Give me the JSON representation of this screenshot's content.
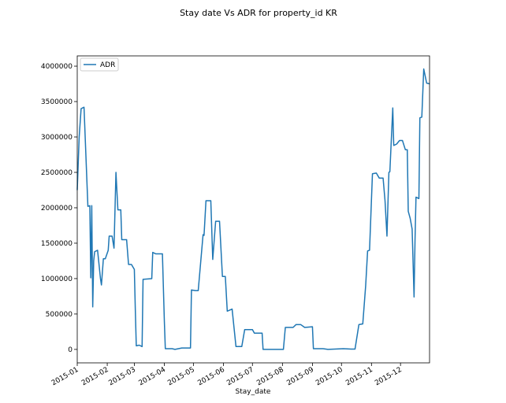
{
  "chart_data": {
    "type": "line",
    "title": "Stay date Vs ADR for property_id KR",
    "xlabel": "Stay_date",
    "x": [
      0,
      2,
      4,
      7,
      11,
      13,
      14,
      15,
      16,
      17,
      18,
      21,
      24,
      25,
      27,
      29,
      32,
      33,
      36,
      38,
      40,
      42,
      45,
      46,
      51,
      53,
      56,
      59,
      60,
      61,
      64,
      67,
      68,
      77,
      78,
      81,
      88,
      90,
      91,
      98,
      101,
      108,
      117,
      118,
      122,
      125,
      130,
      131,
      133,
      138,
      140,
      143,
      147,
      150,
      153,
      155,
      160,
      164,
      170,
      173,
      181,
      183,
      191,
      192,
      213,
      215,
      223,
      226,
      231,
      235,
      243,
      244,
      254,
      259,
      266,
      275,
      283,
      287,
      291,
      295,
      298,
      300,
      302,
      305,
      309,
      312,
      316,
      318,
      320,
      322,
      323,
      326,
      327,
      330,
      333,
      336,
      339,
      341,
      342,
      344,
      346,
      348,
      349,
      350,
      353,
      354,
      356,
      358,
      361,
      364
    ],
    "series": [
      {
        "name": "ADR",
        "color": "#1f77b4",
        "values": [
          2250000,
          3000000,
          3400000,
          3420000,
          2020000,
          2030000,
          1010000,
          2030000,
          600000,
          1250000,
          1380000,
          1400000,
          1000000,
          910000,
          1280000,
          1280000,
          1400000,
          1600000,
          1600000,
          1430000,
          2500000,
          1970000,
          1970000,
          1550000,
          1550000,
          1200000,
          1200000,
          1130000,
          560000,
          50000,
          60000,
          40000,
          990000,
          1000000,
          1370000,
          1350000,
          1350000,
          400000,
          10000,
          10000,
          0,
          20000,
          20000,
          840000,
          830000,
          830000,
          1620000,
          1610000,
          2100000,
          2100000,
          1270000,
          1810000,
          1810000,
          1030000,
          1030000,
          540000,
          570000,
          40000,
          40000,
          280000,
          280000,
          230000,
          230000,
          0,
          0,
          310000,
          310000,
          350000,
          350000,
          310000,
          320000,
          10000,
          10000,
          0,
          5000,
          10000,
          5000,
          5000,
          350000,
          360000,
          900000,
          1390000,
          1400000,
          2480000,
          2490000,
          2420000,
          2420000,
          2100000,
          1600000,
          2500000,
          2510000,
          3410000,
          2880000,
          2900000,
          2950000,
          2950000,
          2820000,
          2820000,
          1950000,
          1850000,
          1700000,
          740000,
          1550000,
          2150000,
          2130000,
          3270000,
          3280000,
          3960000,
          3760000,
          3750000
        ]
      }
    ],
    "xlim": [
      0,
      364
    ],
    "xticks": [
      {
        "value": 0,
        "label": "2015-01"
      },
      {
        "value": 31,
        "label": "2015-02"
      },
      {
        "value": 59,
        "label": "2015-03"
      },
      {
        "value": 90,
        "label": "2015-04"
      },
      {
        "value": 120,
        "label": "2015-05"
      },
      {
        "value": 151,
        "label": "2015-06"
      },
      {
        "value": 181,
        "label": "2015-07"
      },
      {
        "value": 212,
        "label": "2015-08"
      },
      {
        "value": 243,
        "label": "2015-09"
      },
      {
        "value": 273,
        "label": "2015-10"
      },
      {
        "value": 304,
        "label": "2015-11"
      },
      {
        "value": 334,
        "label": "2015-12"
      }
    ],
    "ylim": [
      -190000,
      4145000
    ],
    "yticks": [
      0,
      500000,
      1000000,
      1500000,
      2000000,
      2500000,
      3000000,
      3500000,
      4000000
    ],
    "legend": "upper left",
    "grid": false
  }
}
